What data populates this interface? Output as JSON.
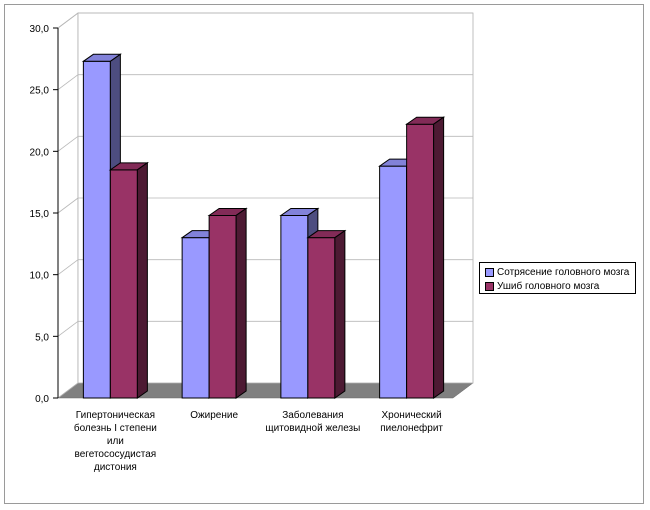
{
  "chart_data": {
    "type": "bar",
    "categories": [
      [
        "Гипертоническая",
        "болезнь I степени",
        "или",
        "вегетососудистая",
        "дистония"
      ],
      [
        "Ожирение"
      ],
      [
        "Заболевания",
        "щитовидной железы"
      ],
      [
        "Хронический",
        "пиелонефрит"
      ]
    ],
    "series": [
      {
        "name": "Сотрясение головного мозга",
        "values": [
          27.3,
          13.0,
          14.8,
          18.8
        ],
        "color": "#9999ff"
      },
      {
        "name": "Ушиб головного мозга",
        "values": [
          18.5,
          14.8,
          13.0,
          22.2
        ],
        "color": "#993366"
      }
    ],
    "ylim": [
      0,
      30
    ],
    "yticks": [
      "0,0",
      "5,0",
      "10,0",
      "15,0",
      "20,0",
      "25,0",
      "30,0"
    ],
    "grid": true,
    "legend_position": "right",
    "style": "3d-clustered-column"
  }
}
